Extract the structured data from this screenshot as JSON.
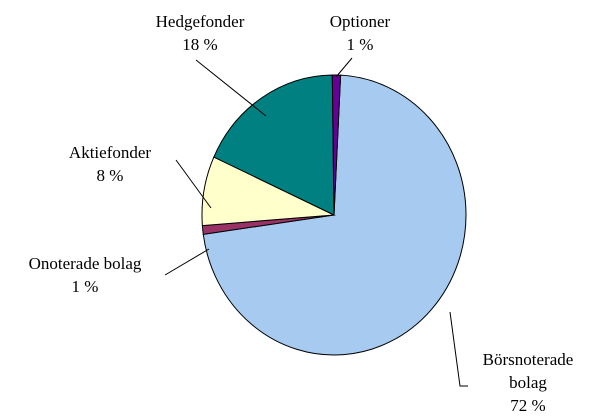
{
  "chart_data": {
    "type": "pie",
    "categories": [
      "Börsnoterade bolag",
      "Onoterade bolag",
      "Aktiefonder",
      "Hedgefonder",
      "Optioner"
    ],
    "values": [
      72,
      1,
      8,
      18,
      1
    ],
    "value_labels": [
      "72 %",
      "1 %",
      "8 %",
      "18 %",
      "1 %"
    ],
    "colors": [
      "#a6caf0",
      "#993366",
      "#ffffcc",
      "#008080",
      "#660099"
    ]
  }
}
